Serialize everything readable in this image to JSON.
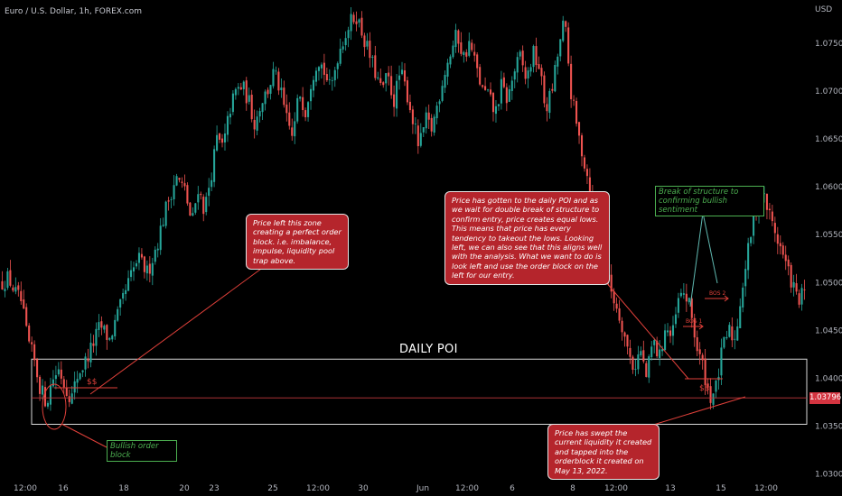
{
  "header": {
    "symbol": "Euro / U.S. Dollar, 1h, FOREX.com",
    "currency": "USD"
  },
  "price_tag": "1.03796",
  "annotations": {
    "daily_poi": "DAILY POI",
    "note_order_block": "Price left this zone creating a perfect order block. i.e. imbalance, impulse, liquidity pool trap above.",
    "note_daily_poi": "Price has gotten to the daily POI and as we wait for double break of structure to confirm entry, price creates equal lows. This means that price has every tendency to takeout the lows. Looking left, we can also see that this aligns well with the analysis. What we want to do is look left and use the order block on the left for our entry.",
    "note_sweep": "Price has swept the current liquidity it created and tapped into the orderblock it created on May 13, 2022.",
    "break_of_structure": "Break of structure to confirming bullish sentiment",
    "bullish_order_block": "Bullish order block",
    "liquidity_left": "$$",
    "liquidity_right": "$$",
    "bos1": "BOS 1",
    "bos2": "BOS 2"
  },
  "colors": {
    "up": "#26a69a",
    "down": "#ef5350",
    "accent": "#b5252c",
    "label_green": "#4caf50"
  },
  "chart_data": {
    "type": "candlestick",
    "symbol": "EURUSD",
    "timeframe": "1h",
    "x_ticks": [
      "12:00",
      "16",
      "18",
      "20",
      "23",
      "25",
      "12:00",
      "30",
      "Jun",
      "12:00",
      "6",
      "8",
      "12:00",
      "13",
      "15",
      "12:00"
    ],
    "y_ticks": [
      "1.07500",
      "1.07000",
      "1.06500",
      "1.06000",
      "1.05500",
      "1.05000",
      "1.04500",
      "1.04000",
      "1.03500",
      "1.03000"
    ],
    "ylim": [
      1.0295,
      1.0795
    ],
    "last_price": 1.03796,
    "daily_poi_zone": [
      1.0352,
      1.042
    ],
    "path_points": [
      [
        0,
        1.05
      ],
      [
        2,
        1.0505
      ],
      [
        4,
        1.049
      ],
      [
        6,
        1.048
      ],
      [
        8,
        1.044
      ],
      [
        10,
        1.042
      ],
      [
        12,
        1.039
      ],
      [
        14,
        1.0375
      ],
      [
        16,
        1.04
      ],
      [
        18,
        1.041
      ],
      [
        20,
        1.039
      ],
      [
        22,
        1.038
      ],
      [
        24,
        1.0405
      ],
      [
        26,
        1.0415
      ],
      [
        28,
        1.043
      ],
      [
        31,
        1.0455
      ],
      [
        34,
        1.044
      ],
      [
        37,
        1.047
      ],
      [
        40,
        1.05
      ],
      [
        43,
        1.0525
      ],
      [
        46,
        1.051
      ],
      [
        49,
        1.054
      ],
      [
        52,
        1.058
      ],
      [
        55,
        1.061
      ],
      [
        58,
        1.0595
      ],
      [
        60,
        1.056
      ],
      [
        62,
        1.06
      ],
      [
        64,
        1.0575
      ],
      [
        66,
        1.061
      ],
      [
        68,
        1.065
      ],
      [
        70,
        1.064
      ],
      [
        72,
        1.068
      ],
      [
        74,
        1.07
      ],
      [
        76,
        1.0705
      ],
      [
        78,
        1.069
      ],
      [
        80,
        1.0665
      ],
      [
        82,
        1.069
      ],
      [
        84,
        1.07
      ],
      [
        86,
        1.072
      ],
      [
        88,
        1.07
      ],
      [
        90,
        1.067
      ],
      [
        92,
        1.065
      ],
      [
        94,
        1.07
      ],
      [
        96,
        1.068
      ],
      [
        98,
        1.0715
      ],
      [
        100,
        1.0735
      ],
      [
        102,
        1.072
      ],
      [
        104,
        1.07
      ],
      [
        106,
        1.0735
      ],
      [
        108,
        1.0755
      ],
      [
        110,
        1.077
      ],
      [
        112,
        1.078
      ],
      [
        114,
        1.076
      ],
      [
        116,
        1.074
      ],
      [
        118,
        1.072
      ],
      [
        120,
        1.07
      ],
      [
        122,
        1.0715
      ],
      [
        124,
        1.069
      ],
      [
        126,
        1.072
      ],
      [
        128,
        1.07
      ],
      [
        130,
        1.067
      ],
      [
        132,
        1.064
      ],
      [
        134,
        1.067
      ],
      [
        136,
        1.066
      ],
      [
        138,
        1.069
      ],
      [
        140,
        1.072
      ],
      [
        142,
        1.074
      ],
      [
        144,
        1.076
      ],
      [
        146,
        1.0735
      ],
      [
        148,
        1.075
      ],
      [
        150,
        1.0725
      ],
      [
        152,
        1.07
      ],
      [
        154,
        1.0695
      ],
      [
        156,
        1.0675
      ],
      [
        158,
        1.0705
      ],
      [
        160,
        1.069
      ],
      [
        162,
        1.072
      ],
      [
        164,
        1.0735
      ],
      [
        166,
        1.071
      ],
      [
        168,
        1.074
      ],
      [
        170,
        1.0725
      ],
      [
        172,
        1.068
      ],
      [
        174,
        1.07
      ],
      [
        176,
        1.074
      ],
      [
        178,
        1.0775
      ],
      [
        180,
        1.07
      ],
      [
        182,
        1.066
      ],
      [
        184,
        1.063
      ],
      [
        186,
        1.06
      ],
      [
        188,
        1.056
      ],
      [
        190,
        1.053
      ],
      [
        192,
        1.05
      ],
      [
        194,
        1.048
      ],
      [
        196,
        1.046
      ],
      [
        198,
        1.043
      ],
      [
        200,
        1.041
      ],
      [
        202,
        1.043
      ],
      [
        204,
        1.04
      ],
      [
        206,
        1.044
      ],
      [
        208,
        1.042
      ],
      [
        210,
        1.0455
      ],
      [
        212,
        1.044
      ],
      [
        214,
        1.048
      ],
      [
        216,
        1.049
      ],
      [
        218,
        1.047
      ],
      [
        220,
        1.043
      ],
      [
        222,
        1.041
      ],
      [
        224,
        1.038
      ],
      [
        226,
        1.039
      ],
      [
        228,
        1.043
      ],
      [
        230,
        1.045
      ],
      [
        232,
        1.044
      ],
      [
        234,
        1.049
      ],
      [
        236,
        1.053
      ],
      [
        238,
        1.057
      ],
      [
        240,
        1.06
      ],
      [
        242,
        1.058
      ],
      [
        244,
        1.056
      ],
      [
        246,
        1.054
      ],
      [
        248,
        1.052
      ],
      [
        250,
        1.05
      ],
      [
        252,
        1.048
      ],
      [
        254,
        1.049
      ]
    ]
  }
}
